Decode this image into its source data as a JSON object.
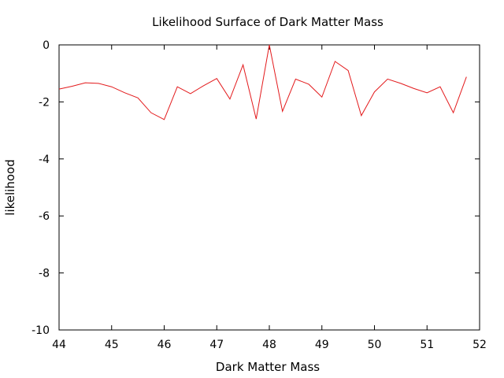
{
  "chart_data": {
    "type": "line",
    "title": "Likelihood Surface of Dark Matter Mass",
    "xlabel": "Dark Matter Mass",
    "ylabel": "likelihood",
    "xlim": [
      44,
      52
    ],
    "ylim": [
      -10,
      0
    ],
    "xticks": [
      "44",
      "45",
      "46",
      "47",
      "48",
      "49",
      "50",
      "51",
      "52"
    ],
    "yticks": [
      "0",
      "-2",
      "-4",
      "-6",
      "-8",
      "-10"
    ],
    "grid": false,
    "series": [
      {
        "color": "#e31a1c",
        "x": [
          44.0,
          44.25,
          44.5,
          44.75,
          45.0,
          45.25,
          45.5,
          45.75,
          46.0,
          46.25,
          46.5,
          46.75,
          47.0,
          47.25,
          47.5,
          47.75,
          48.0,
          48.25,
          48.5,
          48.75,
          49.0,
          49.25,
          49.5,
          49.75,
          50.0,
          50.25,
          50.5,
          50.75,
          51.0,
          51.25,
          51.5,
          51.75
        ],
        "y": [
          -1.55,
          -1.45,
          -1.33,
          -1.35,
          -1.47,
          -1.68,
          -1.86,
          -2.38,
          -2.62,
          -1.47,
          -1.71,
          -1.43,
          -1.18,
          -1.9,
          -0.7,
          -2.6,
          0.0,
          -2.33,
          -1.2,
          -1.38,
          -1.83,
          -0.58,
          -0.9,
          -2.48,
          -1.65,
          -1.2,
          -1.35,
          -1.53,
          -1.68,
          -1.47,
          -2.38,
          -1.12
        ]
      }
    ]
  }
}
